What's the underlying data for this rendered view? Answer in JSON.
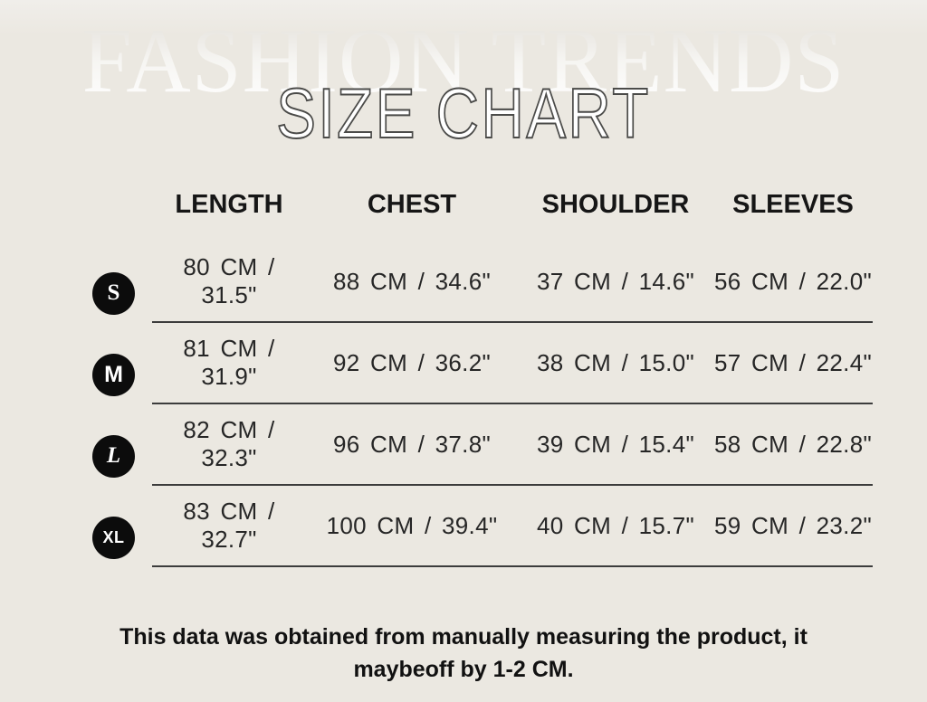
{
  "watermark": "FASHION TRENDS",
  "title": "SIZE CHART",
  "note": "This data was obtained from manually measuring the product, it maybeoff by 1-2 CM.",
  "colors": {
    "background": "#ebe8e1",
    "badge": "#0c0c0c",
    "rule_line": "#3c3c3c",
    "text": "#262626",
    "title_fill": "#ffffff",
    "title_outline": "#4b4b49"
  },
  "chart_data": {
    "type": "table",
    "title": "SIZE CHART",
    "columns": [
      "LENGTH",
      "CHEST",
      "SHOULDER",
      "SLEEVES"
    ],
    "rows": [
      {
        "size": "S",
        "values": [
          "80 CM / 31.5\"",
          "88 CM / 34.6\"",
          "37 CM / 14.6\"",
          "56 CM / 22.0\""
        ]
      },
      {
        "size": "M",
        "values": [
          "81 CM / 31.9\"",
          "92 CM / 36.2\"",
          "38 CM / 15.0\"",
          "57 CM / 22.4\""
        ]
      },
      {
        "size": "L",
        "values": [
          "82 CM / 32.3\"",
          "96 CM / 37.8\"",
          "39 CM / 15.4\"",
          "58 CM / 22.8\""
        ]
      },
      {
        "size": "XL",
        "values": [
          "83 CM / 32.7\"",
          "100 CM / 39.4\"",
          "40 CM / 15.7\"",
          "59 CM / 23.2\""
        ]
      }
    ],
    "footnote": "This data was obtained from manually measuring the product, it maybeoff by 1-2 CM."
  }
}
